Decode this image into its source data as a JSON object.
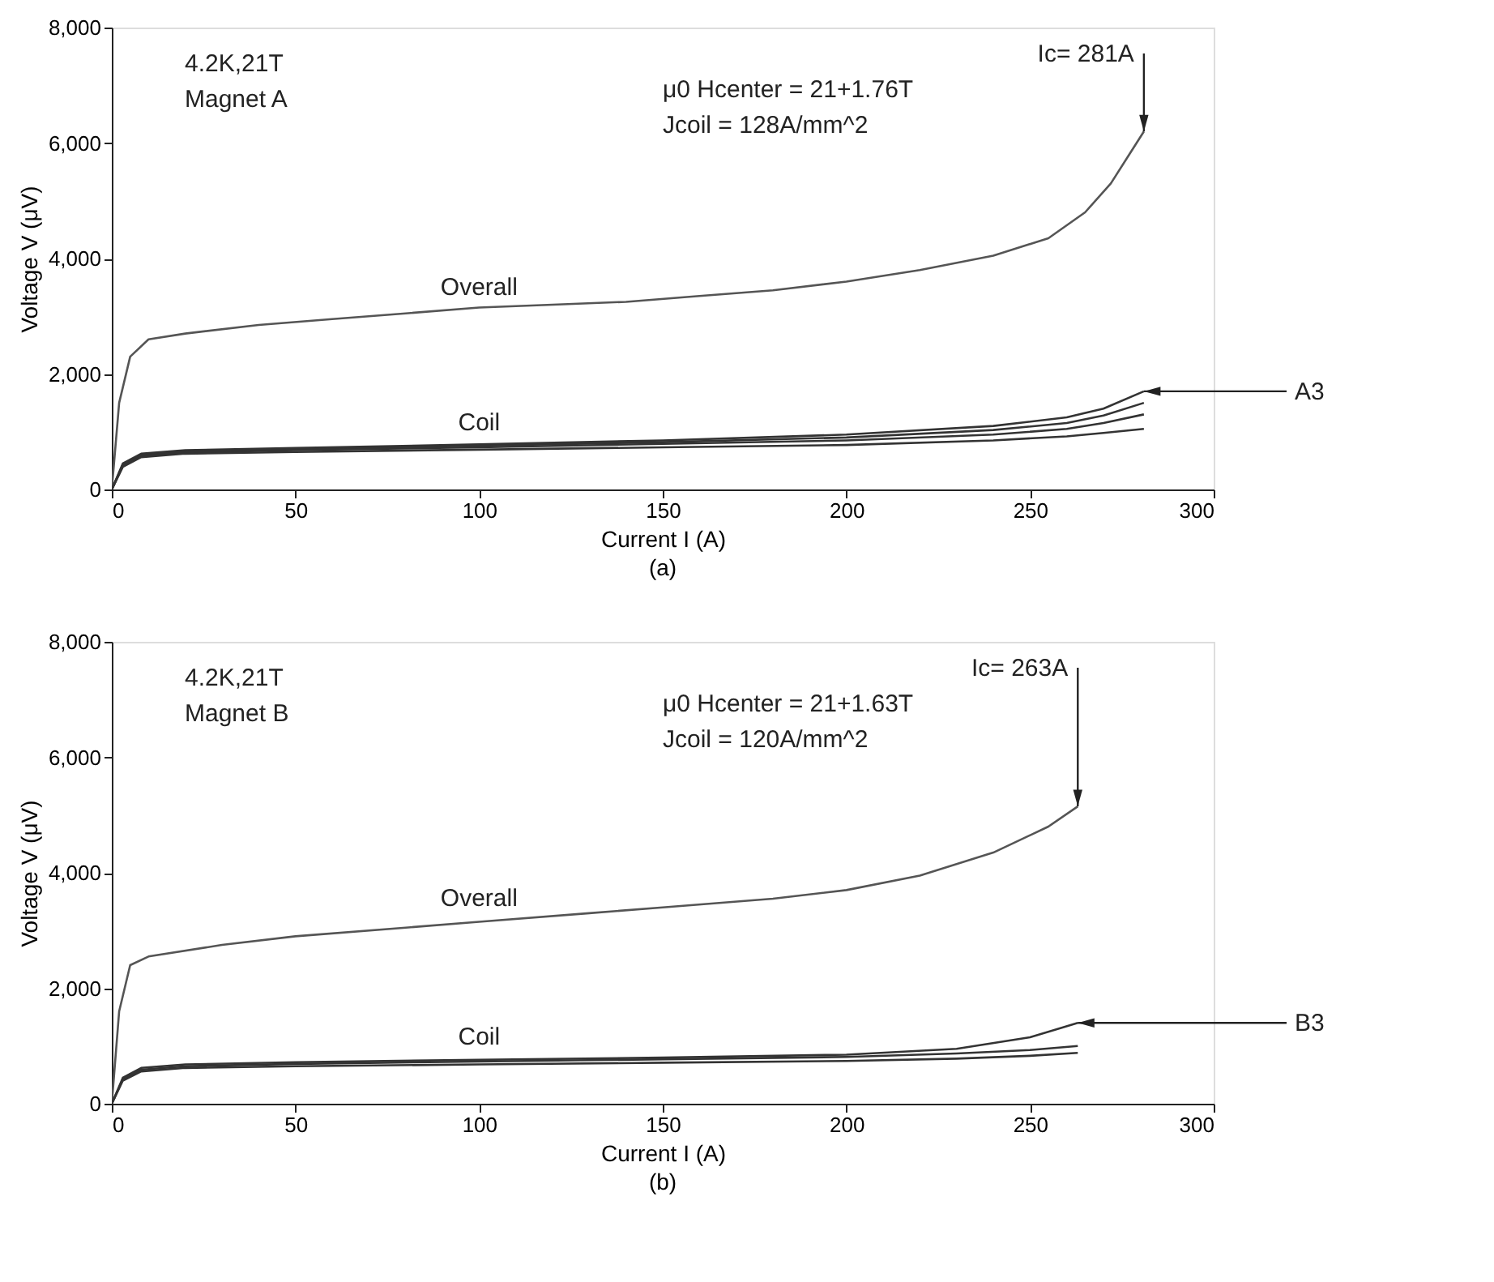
{
  "chart_data": [
    {
      "type": "line",
      "title": "(a)",
      "xlabel": "Current I (A)",
      "ylabel": "Voltage V (μV)",
      "xlim": [
        0,
        300
      ],
      "ylim": [
        0,
        8000
      ],
      "xticks": [
        0,
        50,
        100,
        150,
        200,
        250,
        300
      ],
      "yticks": [
        0,
        {
          "value": 2000,
          "label": "2,000"
        },
        {
          "value": 4000,
          "label": "4,000"
        },
        {
          "value": 6000,
          "label": "6,000"
        },
        {
          "value": 8000,
          "label": "8,000"
        }
      ],
      "grid": false,
      "marker": "none",
      "line_style": "solid",
      "series": [
        {
          "color": "#555555",
          "x": [
            0,
            2,
            5,
            10,
            20,
            40,
            60,
            80,
            100,
            120,
            140,
            160,
            180,
            200,
            220,
            240,
            255,
            265,
            272,
            277,
            281
          ],
          "values": [
            0,
            1500,
            2300,
            2600,
            2700,
            2850,
            2950,
            3050,
            3150,
            3200,
            3250,
            3350,
            3450,
            3600,
            3800,
            4050,
            4350,
            4800,
            5300,
            5800,
            6200
          ]
        },
        {
          "color": "#333333",
          "x": [
            0,
            3,
            8,
            20,
            50,
            100,
            150,
            200,
            240,
            260,
            270,
            281
          ],
          "values": [
            0,
            450,
            620,
            680,
            720,
            780,
            850,
            950,
            1100,
            1250,
            1400,
            1700
          ]
        },
        {
          "color": "#333333",
          "x": [
            0,
            3,
            8,
            20,
            50,
            100,
            150,
            200,
            240,
            260,
            270,
            281
          ],
          "values": [
            0,
            430,
            600,
            660,
            700,
            760,
            820,
            900,
            1030,
            1150,
            1280,
            1500
          ]
        },
        {
          "color": "#333333",
          "x": [
            0,
            3,
            8,
            20,
            50,
            100,
            150,
            200,
            240,
            260,
            270,
            281
          ],
          "values": [
            0,
            410,
            580,
            640,
            680,
            730,
            790,
            850,
            950,
            1050,
            1150,
            1300
          ]
        },
        {
          "color": "#333333",
          "x": [
            0,
            3,
            8,
            20,
            50,
            100,
            150,
            200,
            240,
            260,
            270,
            281
          ],
          "values": [
            0,
            390,
            560,
            620,
            650,
            690,
            730,
            770,
            850,
            920,
            980,
            1050
          ]
        }
      ],
      "annotations": [
        "4.2K,21T",
        "Magnet A",
        {
          "text": "Ic= 281A",
          "x": 281,
          "y": 6200
        },
        "μ0 Hcenter = 21+1.76T",
        "Jcoil      = 128A/mm^2",
        {
          "text": "Overall",
          "x": 100,
          "y": 3200
        },
        {
          "text": "Coil",
          "x": 100,
          "y": 850
        },
        {
          "text": "A3",
          "x": 281,
          "y": 1700
        }
      ]
    },
    {
      "type": "line",
      "title": "(b)",
      "xlabel": "Current I (A)",
      "ylabel": "Voltage V (μV)",
      "xlim": [
        0,
        300
      ],
      "ylim": [
        0,
        8000
      ],
      "xticks": [
        0,
        50,
        100,
        150,
        200,
        250,
        300
      ],
      "yticks": [
        0,
        {
          "value": 2000,
          "label": "2,000"
        },
        {
          "value": 4000,
          "label": "4,000"
        },
        {
          "value": 6000,
          "label": "6,000"
        },
        {
          "value": 8000,
          "label": "8,000"
        }
      ],
      "grid": false,
      "marker": "none",
      "line_style": "solid",
      "series": [
        {
          "color": "#555555",
          "x": [
            0,
            2,
            5,
            10,
            30,
            50,
            80,
            100,
            130,
            150,
            180,
            200,
            220,
            240,
            255,
            263
          ],
          "values": [
            0,
            1600,
            2400,
            2550,
            2750,
            2900,
            3050,
            3150,
            3300,
            3400,
            3550,
            3700,
            3950,
            4350,
            4800,
            5150
          ]
        },
        {
          "color": "#333333",
          "x": [
            0,
            3,
            8,
            20,
            50,
            100,
            150,
            200,
            230,
            250,
            263
          ],
          "values": [
            0,
            450,
            620,
            680,
            720,
            760,
            800,
            850,
            950,
            1150,
            1400
          ]
        },
        {
          "color": "#333333",
          "x": [
            0,
            3,
            8,
            20,
            50,
            100,
            150,
            200,
            230,
            250,
            263
          ],
          "values": [
            0,
            420,
            590,
            650,
            690,
            730,
            770,
            810,
            870,
            930,
            1000
          ]
        },
        {
          "color": "#333333",
          "x": [
            0,
            3,
            8,
            20,
            50,
            100,
            150,
            200,
            230,
            250,
            263
          ],
          "values": [
            0,
            400,
            560,
            620,
            650,
            680,
            710,
            740,
            780,
            830,
            880
          ]
        }
      ],
      "annotations": [
        "4.2K,21T",
        "Magnet B",
        {
          "text": "Ic= 263A",
          "x": 263,
          "y": 5150
        },
        "μ0 Hcenter = 21+1.63T",
        "Jcoil      = 120A/mm^2",
        {
          "text": "Overall",
          "x": 100,
          "y": 3250
        },
        {
          "text": "Coil",
          "x": 100,
          "y": 850
        },
        {
          "text": "B3",
          "x": 263,
          "y": 1400
        }
      ]
    }
  ]
}
